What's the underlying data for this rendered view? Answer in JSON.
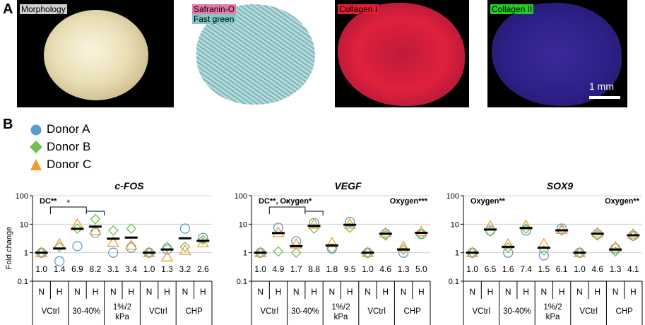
{
  "panel_a": {
    "letter": "A",
    "images": [
      {
        "label": "Morphology"
      },
      {
        "label1": "Safranin-O",
        "label2": "Fast green"
      },
      {
        "label": "Collagen I"
      },
      {
        "label": "Collagen II",
        "scale": "1 mm"
      }
    ]
  },
  "panel_b": {
    "letter": "B",
    "legend": [
      {
        "name": "Donor A",
        "marker": "circle",
        "color": "#5b9bd5"
      },
      {
        "name": "Donor B",
        "marker": "diamond",
        "color": "#70c050"
      },
      {
        "name": "Donor C",
        "marker": "triangle",
        "color": "#f39a2a"
      }
    ],
    "ylabel": "Fold change",
    "yticks": [
      "100",
      "10",
      "1",
      "0.1"
    ],
    "nh": [
      "N",
      "H"
    ],
    "groups": [
      "VCtrl",
      "30-40%",
      "1%/2 kPa",
      "VCtrl",
      "CHP"
    ]
  },
  "chart_data": [
    {
      "type": "scatter",
      "title": "c-FOS",
      "yscale": "log",
      "ylim": [
        0.1,
        100
      ],
      "categories": [
        "VCtrl N",
        "VCtrl H",
        "30-40% N",
        "30-40% H",
        "1%/2 kPa N",
        "1%/2 kPa H",
        "VCtrl N",
        "VCtrl H",
        "CHP N",
        "CHP H"
      ],
      "means": [
        1.0,
        1.4,
        6.9,
        8.2,
        3.1,
        3.4,
        1.0,
        1.3,
        3.2,
        2.6
      ],
      "mean_labels": [
        "1.0",
        "1.4",
        "6.9",
        "8.2",
        "3.1",
        "3.4",
        "1.0",
        "1.3",
        "3.2",
        "2.6"
      ],
      "series": [
        {
          "name": "Donor A",
          "values": [
            1.0,
            0.5,
            1.7,
            5.0,
            1.0,
            1.5,
            1.0,
            1.3,
            7.0,
            3.3
          ]
        },
        {
          "name": "Donor B",
          "values": [
            1.0,
            1.6,
            7.0,
            15.0,
            6.0,
            7.0,
            1.0,
            1.6,
            1.6,
            2.8
          ]
        },
        {
          "name": "Donor C",
          "values": [
            1.0,
            2.0,
            10.0,
            6.0,
            2.3,
            1.8,
            1.0,
            0.7,
            1.2,
            2.2
          ]
        }
      ],
      "annotations": {
        "main": "DC**",
        "brackets": [
          {
            "text": "*"
          }
        ]
      }
    },
    {
      "type": "scatter",
      "title": "VEGF",
      "yscale": "log",
      "ylim": [
        0.1,
        100
      ],
      "categories": [
        "VCtrl N",
        "VCtrl H",
        "30-40% N",
        "30-40% H",
        "1%/2 kPa N",
        "1%/2 kPa H",
        "VCtrl N",
        "VCtrl H",
        "CHP N",
        "CHP H"
      ],
      "means": [
        1.0,
        4.9,
        1.7,
        8.8,
        1.8,
        9.5,
        1.0,
        4.6,
        1.3,
        5.0
      ],
      "mean_labels": [
        "1.0",
        "4.9",
        "1.7",
        "8.8",
        "1.8",
        "9.5",
        "1.0",
        "4.6",
        "1.3",
        "5.0"
      ],
      "series": [
        {
          "name": "Donor A",
          "values": [
            1.0,
            7.5,
            2.5,
            11.0,
            1.4,
            12.0,
            1.0,
            4.6,
            1.0,
            4.5
          ]
        },
        {
          "name": "Donor B",
          "values": [
            1.0,
            1.1,
            1.0,
            7.0,
            1.4,
            7.5,
            1.0,
            4.0,
            1.3,
            4.5
          ]
        },
        {
          "name": "Donor C",
          "values": [
            1.0,
            5.0,
            2.0,
            10.0,
            2.2,
            10.0,
            1.0,
            5.0,
            1.6,
            5.5
          ]
        }
      ],
      "annotations": {
        "main": "DC**, Oxygen*",
        "right": "Oxygen***",
        "brackets": [
          {
            "text": "*"
          }
        ]
      }
    },
    {
      "type": "scatter",
      "title": "SOX9",
      "yscale": "log",
      "ylim": [
        0.1,
        100
      ],
      "categories": [
        "VCtrl N",
        "VCtrl H",
        "30-40% N",
        "30-40% H",
        "1%/2 kPa N",
        "1%/2 kPa H",
        "VCtrl N",
        "VCtrl H",
        "CHP N",
        "CHP H"
      ],
      "means": [
        1.0,
        6.5,
        1.6,
        7.4,
        1.5,
        6.1,
        1.0,
        4.6,
        1.3,
        4.1
      ],
      "mean_labels": [
        "1.0",
        "6.5",
        "1.6",
        "7.4",
        "1.5",
        "6.1",
        "1.0",
        "4.6",
        "1.3",
        "4.1"
      ],
      "series": [
        {
          "name": "Donor A",
          "values": [
            1.0,
            6.0,
            1.0,
            6.0,
            0.8,
            7.0,
            1.0,
            4.5,
            1.4,
            4.0
          ]
        },
        {
          "name": "Donor B",
          "values": [
            1.0,
            5.5,
            1.5,
            7.0,
            1.2,
            6.0,
            1.0,
            4.0,
            1.1,
            3.8
          ]
        },
        {
          "name": "Donor C",
          "values": [
            1.0,
            8.5,
            2.0,
            9.0,
            2.0,
            6.5,
            1.0,
            5.0,
            1.6,
            4.5
          ]
        }
      ],
      "annotations": {
        "main": "Oxygen**",
        "right": "Oxygen**"
      }
    }
  ]
}
